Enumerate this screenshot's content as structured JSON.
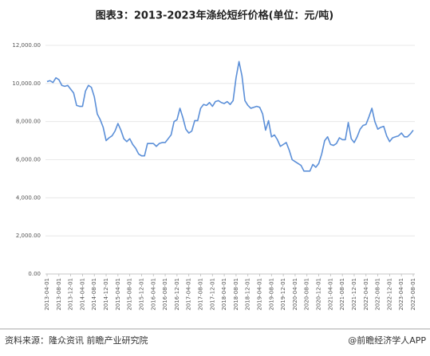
{
  "chart_data": {
    "type": "line",
    "title": "图表3：2013-2023年涤纶短纤价格(单位：元/吨)",
    "source": "资料来源：隆众资讯 前瞻产业研究院",
    "brand": "@前瞻经济学人APP",
    "categories": [
      "2013-04-01",
      null,
      null,
      null,
      "2013-08-01",
      null,
      null,
      null,
      "2013-12-01",
      null,
      null,
      null,
      "2014-04-01",
      null,
      null,
      null,
      "2014-08-01",
      null,
      null,
      null,
      "2014-12-01",
      null,
      null,
      null,
      "2015-04-01",
      null,
      null,
      null,
      "2015-08-01",
      null,
      null,
      null,
      "2015-12-01",
      null,
      null,
      null,
      "2016-04-01",
      null,
      null,
      null,
      "2016-08-01",
      null,
      null,
      null,
      "2016-12-01",
      null,
      null,
      null,
      "2017-04-01",
      null,
      null,
      null,
      "2017-08-01",
      null,
      null,
      null,
      "2017-12-01",
      null,
      null,
      null,
      "2018-04-01",
      null,
      null,
      null,
      "2018-08-01",
      null,
      null,
      null,
      "2018-12-01",
      null,
      null,
      null,
      "2019-04-01",
      null,
      null,
      null,
      "2019-08-01",
      null,
      null,
      null,
      "2019-12-01",
      null,
      null,
      null,
      "2020-04-01",
      null,
      null,
      null,
      "2020-08-01",
      null,
      null,
      null,
      "2020-12-01",
      null,
      null,
      null,
      "2021-04-01",
      null,
      null,
      null,
      "2021-08-01",
      null,
      null,
      null,
      "2021-12-01",
      null,
      null,
      null,
      "2022-04-01",
      null,
      null,
      null,
      "2022-08-01",
      null,
      null,
      null,
      "2022-12-01",
      null,
      null,
      null,
      "2023-04-01",
      null,
      null,
      null,
      "2023-08-01"
    ],
    "series": [
      {
        "name": "涤纶短纤价格",
        "color": "#5b8fd8",
        "values": [
          10100,
          10150,
          10050,
          10300,
          10200,
          9900,
          9850,
          9900,
          9700,
          9500,
          8850,
          8800,
          8800,
          9600,
          9900,
          9800,
          9300,
          8400,
          8100,
          7700,
          7000,
          7150,
          7250,
          7500,
          7900,
          7550,
          7100,
          6950,
          7100,
          6800,
          6600,
          6300,
          6200,
          6200,
          6850,
          6850,
          6850,
          6700,
          6850,
          6900,
          6900,
          7100,
          7300,
          8000,
          8100,
          8700,
          8200,
          7600,
          7400,
          7500,
          8050,
          8050,
          8700,
          8900,
          8850,
          9000,
          8800,
          9050,
          9100,
          9000,
          8950,
          9050,
          8900,
          9100,
          10300,
          11150,
          10400,
          9100,
          8850,
          8700,
          8750,
          8800,
          8750,
          8400,
          7550,
          8050,
          7200,
          7300,
          7050,
          6700,
          6800,
          6900,
          6500,
          6000,
          5900,
          5800,
          5700,
          5400,
          5400,
          5400,
          5750,
          5600,
          5800,
          6300,
          7000,
          7200,
          6800,
          6750,
          6850,
          7150,
          7050,
          7050,
          7950,
          7100,
          6900,
          7200,
          7600,
          7800,
          7850,
          8250,
          8700,
          8000,
          7600,
          7700,
          7750,
          7250,
          6950,
          7150,
          7200,
          7250,
          7400,
          7200,
          7200,
          7350,
          7550
        ]
      }
    ],
    "ylim": [
      0,
      12000
    ],
    "yticks": [
      {
        "value": 0,
        "label": "0.00"
      },
      {
        "value": 2000,
        "label": "2,000.00"
      },
      {
        "value": 4000,
        "label": "4,000.00"
      },
      {
        "value": 6000,
        "label": "6,000.00"
      },
      {
        "value": 8000,
        "label": "8,000.00"
      },
      {
        "value": 10000,
        "label": "10,000.00"
      },
      {
        "value": 12000,
        "label": "12,000.00"
      }
    ],
    "grid": true
  }
}
